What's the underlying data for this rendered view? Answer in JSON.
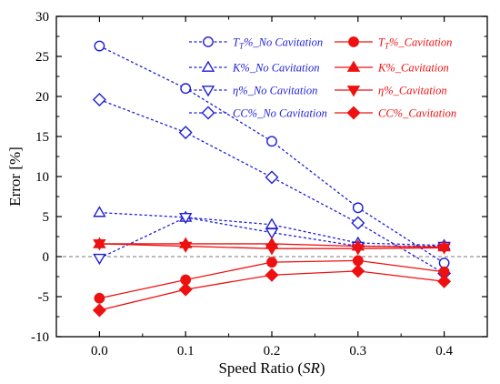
{
  "chart_data": {
    "type": "line",
    "x": [
      0.0,
      0.1,
      0.2,
      0.3,
      0.4
    ],
    "xlabel": "Speed Ratio (SR)",
    "xlabel_parts": {
      "prefix": "Speed Ratio (",
      "symbol": "SR",
      "suffix": ")"
    },
    "ylabel": "Error [%]",
    "xlim": [
      -0.05,
      0.45
    ],
    "ylim": [
      -10,
      30
    ],
    "xticks": [
      0.0,
      0.1,
      0.2,
      0.3,
      0.4
    ],
    "xtick_labels": [
      "0.0",
      "0.1",
      "0.2",
      "0.3",
      "0.4"
    ],
    "yticks": [
      -10,
      -5,
      0,
      5,
      10,
      15,
      20,
      25,
      30
    ],
    "ytick_labels": [
      "-10",
      "-5",
      "0",
      "5",
      "10",
      "15",
      "20",
      "25",
      "30"
    ],
    "grid": false,
    "reference_line": {
      "y": 0,
      "style": "dashed",
      "color": "#777777"
    },
    "legend_position": "top-right",
    "colors": {
      "no_cavitation": "#1f1fd6",
      "cavitation": "#ee1111"
    },
    "series": [
      {
        "name": "TT%_No Cavitation",
        "label_base": "T",
        "label_sub": "T",
        "label_rest": "%_No Cavitation",
        "color": "#1f1fd6",
        "line": "dashed",
        "marker": "circle",
        "filled": false,
        "values": [
          26.3,
          21.0,
          14.4,
          6.1,
          -0.8
        ]
      },
      {
        "name": "K%_No Cavitation",
        "label_base": "K%_No Cavitation",
        "color": "#1f1fd6",
        "line": "dashed",
        "marker": "triangle-up",
        "filled": false,
        "values": [
          5.5,
          4.9,
          4.0,
          1.7,
          1.4
        ]
      },
      {
        "name": "η%_No Cavitation",
        "label_base": "η%_No Cavitation",
        "color": "#1f1fd6",
        "line": "dashed",
        "marker": "triangle-down",
        "filled": false,
        "values": [
          -0.2,
          4.9,
          3.0,
          1.3,
          1.3
        ]
      },
      {
        "name": "CC%_No Cavitation",
        "label_base": "CC%_No Cavitation",
        "color": "#1f1fd6",
        "line": "dashed",
        "marker": "diamond",
        "filled": false,
        "values": [
          19.6,
          15.5,
          9.9,
          4.2,
          -2.1
        ]
      },
      {
        "name": "TT%_Cavitation",
        "label_base": "T",
        "label_sub": "T",
        "label_rest": "%_Cavitation",
        "color": "#ee1111",
        "line": "solid",
        "marker": "circle",
        "filled": true,
        "values": [
          -5.2,
          -2.9,
          -0.7,
          -0.5,
          -1.9
        ]
      },
      {
        "name": "K%_Cavitation",
        "label_base": "K%_Cavitation",
        "color": "#ee1111",
        "line": "solid",
        "marker": "triangle-up",
        "filled": true,
        "values": [
          1.6,
          1.6,
          1.6,
          1.3,
          1.2
        ]
      },
      {
        "name": "η%_Cavitation",
        "label_base": "η%_Cavitation",
        "color": "#ee1111",
        "line": "solid",
        "marker": "triangle-down",
        "filled": true,
        "values": [
          1.6,
          1.3,
          1.0,
          1.0,
          1.1
        ]
      },
      {
        "name": "CC%_Cavitation",
        "label_base": "CC%_Cavitation",
        "color": "#ee1111",
        "line": "solid",
        "marker": "diamond",
        "filled": true,
        "values": [
          -6.7,
          -4.1,
          -2.3,
          -1.8,
          -3.1
        ]
      }
    ],
    "legend_columns": [
      [
        0,
        1,
        2,
        3
      ],
      [
        4,
        5,
        6,
        7
      ]
    ]
  }
}
